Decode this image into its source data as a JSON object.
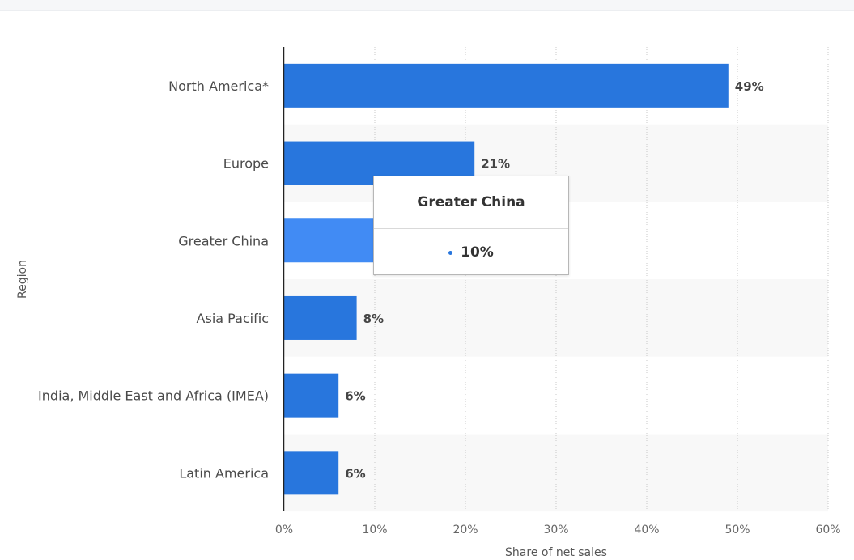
{
  "colors": {
    "bar": "#2876dd",
    "bar_highlight": "#418bf4",
    "band": "#f8f8f8"
  },
  "chart_data": {
    "type": "bar",
    "orientation": "horizontal",
    "categories": [
      "North America*",
      "Europe",
      "Greater China",
      "Asia Pacific",
      "India, Middle East and Africa (IMEA)",
      "Latin America"
    ],
    "values": [
      49,
      21,
      10,
      8,
      6,
      6
    ],
    "value_labels": [
      "49%",
      "21%",
      "10%",
      "8%",
      "6%",
      "6%"
    ],
    "highlighted_category": "Greater China",
    "xlabel": "Share of net sales",
    "ylabel": "Region",
    "xlim": [
      0,
      60
    ],
    "xticks": [
      "0%",
      "10%",
      "20%",
      "30%",
      "40%",
      "50%",
      "60%"
    ],
    "grid": "vertical dotted"
  },
  "tooltip": {
    "title": "Greater China",
    "value": "10%"
  }
}
